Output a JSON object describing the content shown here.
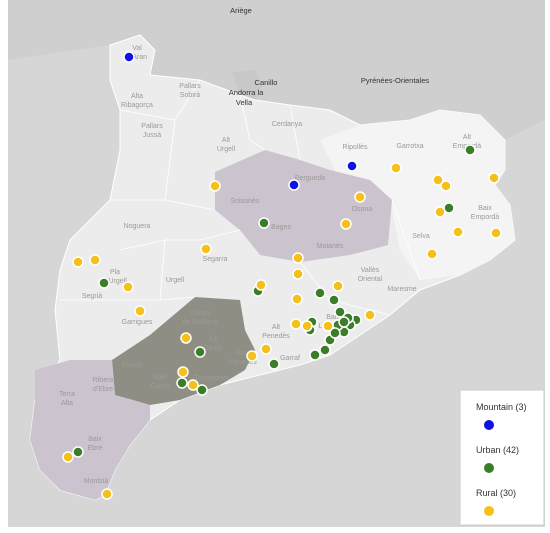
{
  "map": {
    "outside_labels": [
      "Ariège",
      "Canillo",
      "Andorra la",
      "Vella",
      "Pyrénées-Orientales"
    ],
    "place_labels": [
      "Val",
      "d'Aran",
      "Alta",
      "Ribagorça",
      "Pallars",
      "Sobirà",
      "Pallars",
      "Jussà",
      "Alt",
      "Urgell",
      "Cerdanya",
      "Ripollès",
      "Alt",
      "Empordà",
      "Garrotxa",
      "Berguedà",
      "Solsonès",
      "Osona",
      "Bages",
      "Moianès",
      "Noguera",
      "Segarra",
      "Baix",
      "Empordà",
      "Selva",
      "Vallès",
      "Oriental",
      "Maresme",
      "Segrià",
      "Pla",
      "d'Urgell",
      "Urgell",
      "Garrigues",
      "Conca",
      "de Barberà",
      "Alt",
      "Camp",
      "Alt",
      "Penedès",
      "Priorat",
      "Baix",
      "Camp",
      "Tarragonès",
      "Baix",
      "Penedès",
      "Garraf",
      "Baix",
      "Llobregat",
      "Ribera",
      "d'Ebre",
      "Terra",
      "Alta",
      "Baix",
      "Ebre",
      "Montsià"
    ]
  },
  "legend": {
    "items": [
      {
        "label": "Mountain (3)",
        "color": "#1010e8"
      },
      {
        "label": "Urban (42)",
        "color": "#3b7d28"
      },
      {
        "label": "Rural (30)",
        "color": "#f5c01a"
      }
    ]
  }
}
